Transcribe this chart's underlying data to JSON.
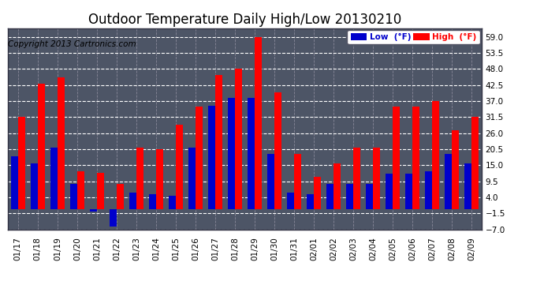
{
  "title": "Outdoor Temperature Daily High/Low 20130210",
  "copyright": "Copyright 2013 Cartronics.com",
  "dates": [
    "01/17",
    "01/18",
    "01/19",
    "01/20",
    "01/21",
    "01/22",
    "01/23",
    "01/24",
    "01/25",
    "01/26",
    "01/27",
    "01/28",
    "01/29",
    "01/30",
    "01/31",
    "02/01",
    "02/02",
    "02/03",
    "02/04",
    "02/05",
    "02/06",
    "02/07",
    "02/08",
    "02/09"
  ],
  "high": [
    31.5,
    43.0,
    45.0,
    13.0,
    12.5,
    8.5,
    21.0,
    20.5,
    29.0,
    35.0,
    46.0,
    48.0,
    59.0,
    40.0,
    19.0,
    11.0,
    15.5,
    21.0,
    21.0,
    35.0,
    35.0,
    37.0,
    27.0,
    31.5
  ],
  "low": [
    18.0,
    15.5,
    21.0,
    8.5,
    -1.0,
    -6.0,
    5.5,
    5.0,
    4.5,
    21.0,
    35.5,
    38.0,
    38.0,
    19.0,
    5.5,
    5.0,
    8.5,
    8.5,
    8.5,
    12.0,
    12.0,
    13.0,
    19.0,
    15.5
  ],
  "high_color": "#ff0000",
  "low_color": "#0000cc",
  "background_color": "#ffffff",
  "plot_bg_color": "#4d5566",
  "grid_color_h": "#ffffff",
  "grid_color_v": "#888899",
  "border_color": "#333344",
  "ylim": [
    -7.0,
    62.0
  ],
  "yticks": [
    -7.0,
    -1.5,
    4.0,
    9.5,
    15.0,
    20.5,
    26.0,
    31.5,
    37.0,
    42.5,
    48.0,
    53.5,
    59.0
  ],
  "legend_low_label": "Low  (°F)",
  "legend_high_label": "High  (°F)",
  "title_fontsize": 12,
  "copyright_fontsize": 7.5,
  "bar_width": 0.36
}
